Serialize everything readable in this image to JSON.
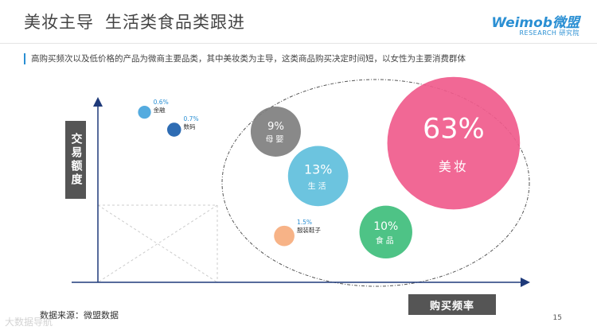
{
  "header": {
    "title_part1": "美妆主导",
    "title_part2": "生活类食品类跟进",
    "logo_brand": "Weimob微盟",
    "logo_sub": "RESEARCH 研究院"
  },
  "subtitle": "高购买频次以及低价格的产品为微商主要品类，其中美妆类为主导，这类商品购买决定时间短，以女性为主要消费群体",
  "chart_data": {
    "type": "scatter",
    "xlabel": "购买频率",
    "ylabel": "交易额度",
    "xlim": [
      0,
      100
    ],
    "ylim": [
      0,
      100
    ],
    "series": [
      {
        "category": "金融",
        "share_label": "0.6%",
        "share": 0.6,
        "x": 11,
        "y": 88,
        "color": "#45a4dc"
      },
      {
        "category": "数码",
        "share_label": "0.7%",
        "share": 0.7,
        "x": 18,
        "y": 79,
        "color": "#1c5fad"
      },
      {
        "category": "母婴",
        "share_label": "9%",
        "share": 9,
        "x": 42,
        "y": 78,
        "color": "#7f7f7f"
      },
      {
        "category": "生活",
        "share_label": "13%",
        "share": 13,
        "x": 52,
        "y": 55,
        "color": "#60bfdc"
      },
      {
        "category": "美妆",
        "share_label": "63%",
        "share": 63,
        "x": 84,
        "y": 72,
        "color": "#f05b8c"
      },
      {
        "category": "食品",
        "share_label": "10%",
        "share": 10,
        "x": 68,
        "y": 26,
        "color": "#3fbe7c"
      },
      {
        "category": "服装鞋子",
        "share_label": "1.5%",
        "share": 1.5,
        "x": 44,
        "y": 24,
        "color": "#f6ac7d"
      }
    ]
  },
  "footer": {
    "source": "数据来源：微盟数据",
    "page_number": "15",
    "watermark": "大数据导航"
  }
}
